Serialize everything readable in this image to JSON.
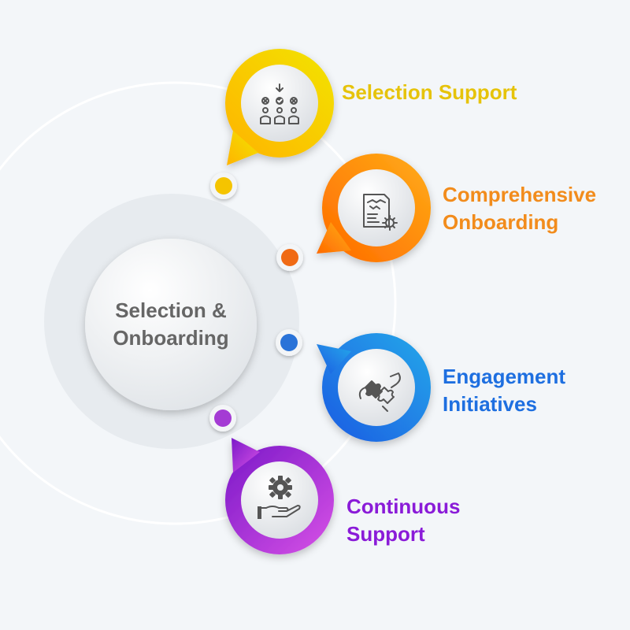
{
  "center": {
    "line1": "Selection &",
    "line2": "Onboarding"
  },
  "steps": [
    {
      "line1": "Selection Support",
      "line2": "",
      "color": "#e6c30a",
      "grad": [
        "#ffb300",
        "#f2e400"
      ],
      "dot": "#f5c400",
      "icon": "candidate-selection-icon"
    },
    {
      "line1": "Comprehensive",
      "line2": "Onboarding",
      "color": "#f28c1c",
      "grad": [
        "#ff6a00",
        "#ffad17"
      ],
      "dot": "#f06a14",
      "icon": "onboarding-agreement-icon"
    },
    {
      "line1": "Engagement",
      "line2": "Initiatives",
      "color": "#1e6fe0",
      "grad": [
        "#1e5be2",
        "#22a8ea"
      ],
      "dot": "#2a73d8",
      "icon": "puzzle-pieces-icon"
    },
    {
      "line1": "Continuous",
      "line2": "Support",
      "color": "#8a1bd8",
      "grad": [
        "#7a19c8",
        "#d851e6"
      ],
      "dot": "#a43bd4",
      "icon": "gear-hand-icon"
    }
  ]
}
